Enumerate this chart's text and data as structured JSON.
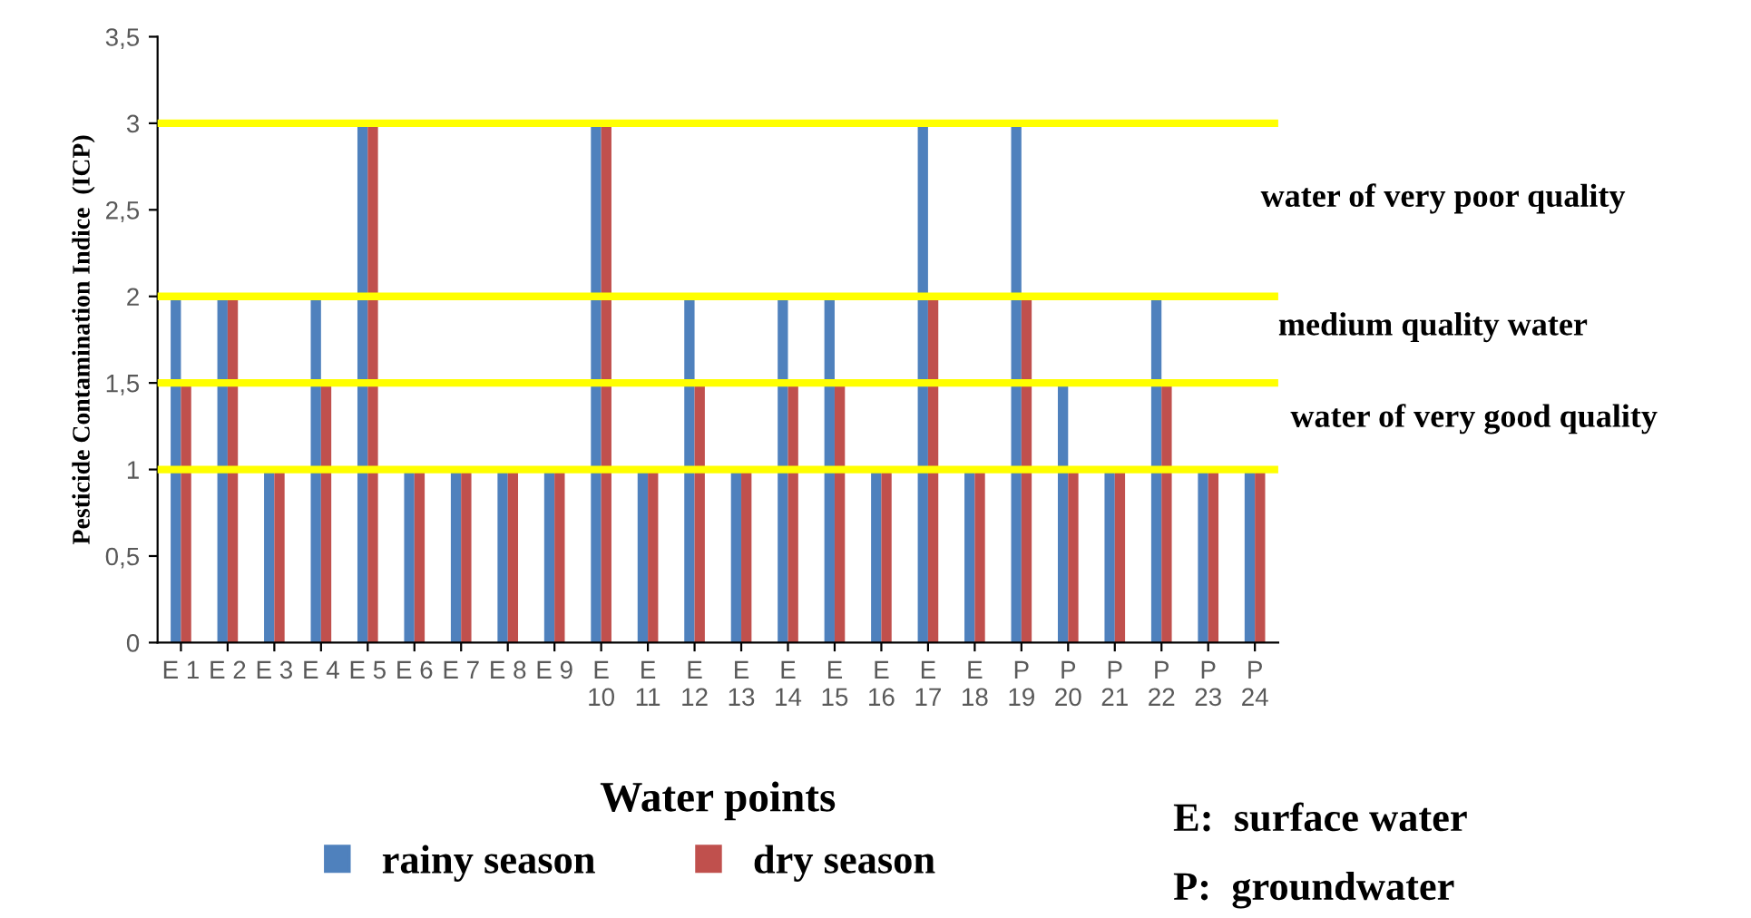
{
  "chart_data": {
    "type": "bar",
    "xlabel": "Water points",
    "ylabel": "Pesticide Contamination Indice  (ICP)",
    "categories": [
      "E 1",
      "E 2",
      "E 3",
      "E 4",
      "E 5",
      "E 6",
      "E 7",
      "E 8",
      "E 9",
      "E 10",
      "E 11",
      "E 12",
      "E 13",
      "E 14",
      "E 15",
      "E 16",
      "E 17",
      "E 18",
      "P 19",
      "P 20",
      "P 21",
      "P 22",
      "P 23",
      "P 24"
    ],
    "series": [
      {
        "name": "rainy season",
        "color": "#4f81bd",
        "values": [
          2,
          2,
          1,
          2,
          3,
          1,
          1,
          1,
          1,
          3,
          1,
          2,
          1,
          2,
          2,
          1,
          3,
          1,
          3,
          1.5,
          1,
          2,
          1,
          1
        ]
      },
      {
        "name": "dry season",
        "color": "#c0504d",
        "values": [
          1.5,
          2,
          1,
          1.5,
          3,
          1,
          1,
          1,
          1,
          3,
          1,
          1.5,
          1,
          1.5,
          1.5,
          1,
          2,
          1,
          2,
          1,
          1,
          1.5,
          1,
          1
        ]
      }
    ],
    "ylim": [
      0,
      3.5
    ],
    "yticks": [
      0,
      {
        "value": 0.5,
        "label": "0,5"
      },
      1,
      {
        "value": 1.5,
        "label": "1,5"
      },
      2,
      {
        "value": 2.5,
        "label": "2,5"
      },
      3,
      {
        "value": 3.5,
        "label": "3,5"
      }
    ],
    "ref_lines": [
      {
        "axis": "y",
        "value": 1,
        "color": "#ffff00"
      },
      {
        "axis": "y",
        "value": 1.5,
        "color": "#ffff00"
      },
      {
        "axis": "y",
        "value": 2,
        "color": "#ffff00"
      },
      {
        "axis": "y",
        "value": 3,
        "color": "#ffff00"
      }
    ],
    "annotations": [
      "water of very poor quality",
      "medium quality water",
      "water of very good quality",
      "E:  surface water",
      "P:  groundwater"
    ],
    "legend": "bottom",
    "grid": false
  }
}
